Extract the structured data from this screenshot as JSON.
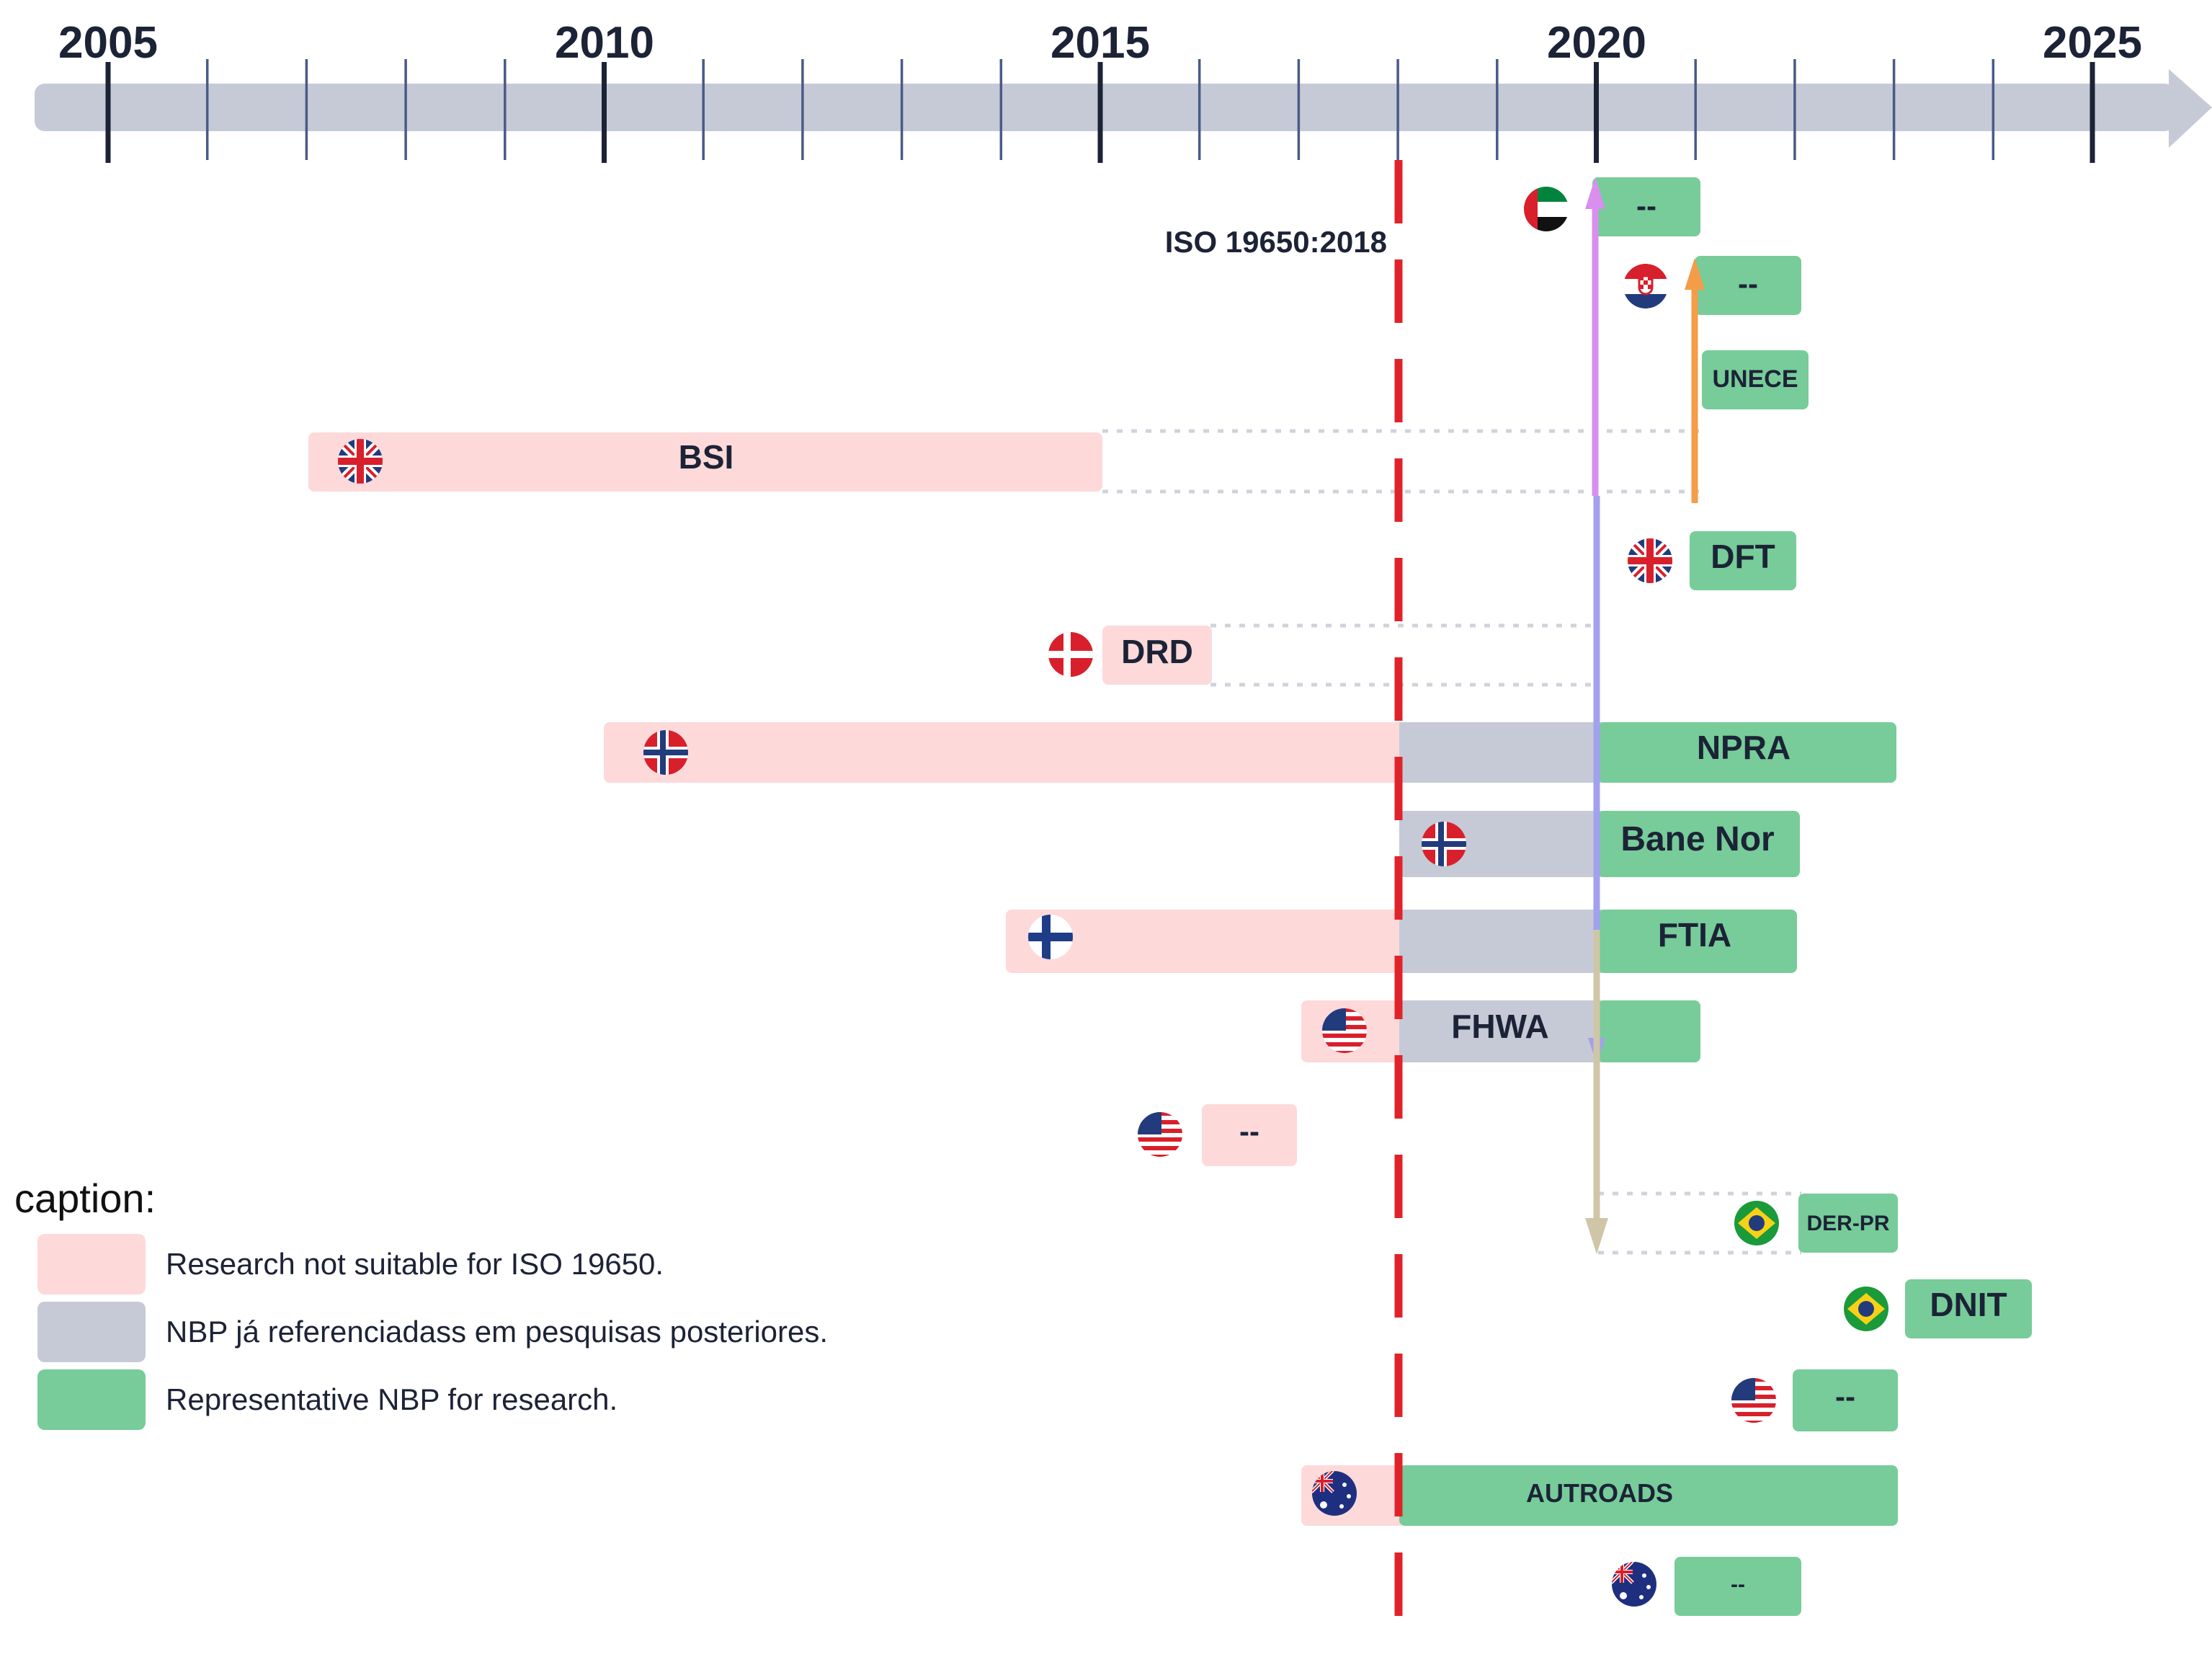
{
  "colors": {
    "axis": "#c5cad6",
    "pink": "#fdd9da",
    "gray": "#c5cad6",
    "green": "#77cc99",
    "text": "#1c2336",
    "red_line": "#e0232a",
    "uk_blue": "#223b7c",
    "flag_red": "#d8202c"
  },
  "timeline": {
    "years": [
      "2005",
      "2010",
      "2015",
      "2020",
      "2025"
    ],
    "iso_label": "ISO 19650:2018"
  },
  "rows": [
    {
      "label": "--",
      "flag": "uae-flag"
    },
    {
      "label": "--",
      "flag": "croatia-flag"
    },
    {
      "label": "UNECE",
      "flag": ""
    },
    {
      "label": "BSI",
      "flag": "uk-flag"
    },
    {
      "label": "DFT",
      "flag": "uk-flag"
    },
    {
      "label": "DRD",
      "flag": "denmark-flag"
    },
    {
      "label": "NPRA",
      "flag": "norway-flag"
    },
    {
      "label": "Bane Nor",
      "flag": "norway-flag"
    },
    {
      "label": "FTIA",
      "flag": "finland-flag"
    },
    {
      "label": "FHWA",
      "flag": "usa-flag"
    },
    {
      "label": "--",
      "flag": "usa-flag"
    },
    {
      "label": "DER-PR",
      "flag": "brazil-flag"
    },
    {
      "label": "DNIT",
      "flag": "brazil-flag"
    },
    {
      "label": "--",
      "flag": "usa-flag"
    },
    {
      "label": "AUTROADS",
      "flag": "australia-flag"
    },
    {
      "label": "--",
      "flag": "australia-flag"
    }
  ],
  "legend": {
    "title": "caption:",
    "items": [
      {
        "label": "Research not suitable for ISO 19650.",
        "color": "#fdd9da"
      },
      {
        "label": "NBP já referenciadass em pesquisas posteriores.",
        "color": "#c5cad6"
      },
      {
        "label": "Representative NBP for research.",
        "color": "#77cc99"
      }
    ]
  }
}
